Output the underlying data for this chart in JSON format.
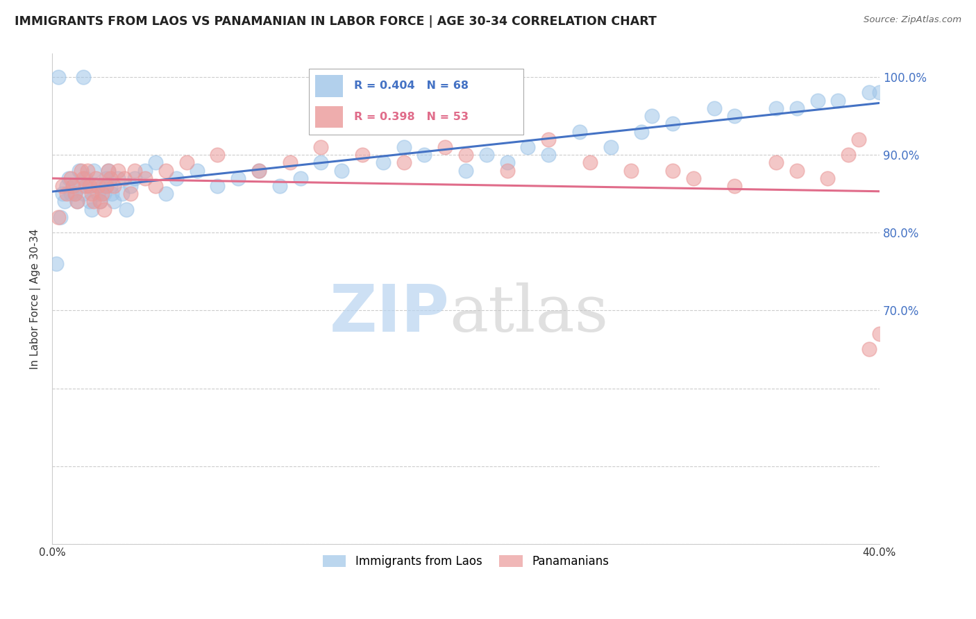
{
  "title": "IMMIGRANTS FROM LAOS VS PANAMANIAN IN LABOR FORCE | AGE 30-34 CORRELATION CHART",
  "source": "Source: ZipAtlas.com",
  "ylabel": "In Labor Force | Age 30-34",
  "xmin": 0.0,
  "xmax": 40.0,
  "ymin": 40.0,
  "ymax": 103.0,
  "legend1_label": "Immigrants from Laos",
  "legend2_label": "Panamanians",
  "R1": 0.404,
  "N1": 68,
  "R2": 0.398,
  "N2": 53,
  "color1": "#9fc5e8",
  "color2": "#ea9999",
  "line_color1": "#4472c4",
  "line_color2": "#e06c8a",
  "right_ytick_color": "#4472c4",
  "watermark_zip_color": "#b8d4f0",
  "watermark_atlas_color": "#c8c8c8",
  "laos_x": [
    0.2,
    0.4,
    0.5,
    0.6,
    0.7,
    0.8,
    0.9,
    1.0,
    1.1,
    1.2,
    1.3,
    1.4,
    1.5,
    1.6,
    1.7,
    1.8,
    1.9,
    2.0,
    2.1,
    2.2,
    2.3,
    2.4,
    2.5,
    2.6,
    2.7,
    2.8,
    2.9,
    3.0,
    3.2,
    3.4,
    3.6,
    3.8,
    4.0,
    4.5,
    5.0,
    5.5,
    6.0,
    7.0,
    8.0,
    9.0,
    10.0,
    11.0,
    12.0,
    13.0,
    14.0,
    16.0,
    17.0,
    18.0,
    20.0,
    21.0,
    22.0,
    23.0,
    24.0,
    25.5,
    27.0,
    28.5,
    29.0,
    30.0,
    32.0,
    33.0,
    35.0,
    36.0,
    37.0,
    38.0,
    39.5,
    40.0,
    0.3,
    1.5
  ],
  "laos_y": [
    76,
    82,
    85,
    84,
    86,
    87,
    85,
    86,
    85,
    84,
    88,
    86,
    85,
    87,
    86,
    84,
    83,
    88,
    86,
    85,
    84,
    86,
    85,
    87,
    88,
    86,
    85,
    84,
    87,
    85,
    83,
    86,
    87,
    88,
    89,
    85,
    87,
    88,
    86,
    87,
    88,
    86,
    87,
    89,
    88,
    89,
    91,
    90,
    88,
    90,
    89,
    91,
    90,
    93,
    91,
    93,
    95,
    94,
    96,
    95,
    96,
    96,
    97,
    97,
    98,
    98,
    100,
    100
  ],
  "pan_x": [
    0.3,
    0.5,
    0.7,
    0.9,
    1.0,
    1.1,
    1.2,
    1.4,
    1.5,
    1.6,
    1.7,
    1.8,
    1.9,
    2.0,
    2.1,
    2.2,
    2.3,
    2.4,
    2.5,
    2.6,
    2.7,
    2.8,
    3.0,
    3.2,
    3.5,
    3.8,
    4.0,
    4.5,
    5.0,
    5.5,
    6.5,
    8.0,
    10.0,
    11.5,
    13.0,
    15.0,
    17.0,
    19.0,
    20.0,
    22.0,
    24.0,
    26.0,
    28.0,
    30.0,
    31.0,
    33.0,
    35.0,
    36.0,
    37.5,
    38.5,
    39.0,
    39.5,
    40.0
  ],
  "pan_y": [
    82,
    86,
    85,
    87,
    86,
    85,
    84,
    88,
    87,
    86,
    88,
    86,
    85,
    84,
    87,
    86,
    84,
    85,
    83,
    86,
    88,
    87,
    86,
    88,
    87,
    85,
    88,
    87,
    86,
    88,
    89,
    90,
    88,
    89,
    91,
    90,
    89,
    91,
    90,
    88,
    92,
    89,
    88,
    88,
    87,
    86,
    89,
    88,
    87,
    90,
    92,
    65,
    67
  ]
}
